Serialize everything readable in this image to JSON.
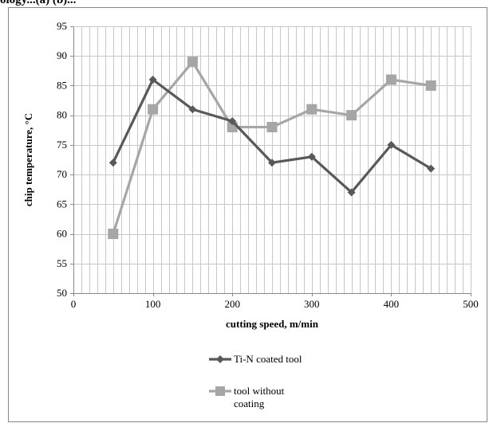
{
  "top_text": "ology...(a) (b)...",
  "chart_data": {
    "type": "line",
    "xlabel": "cutting speed, m/min",
    "ylabel": "chip temperature, °C",
    "xlim": [
      0,
      500
    ],
    "ylim": [
      50,
      95
    ],
    "x_ticks": [
      0,
      100,
      200,
      300,
      400,
      500
    ],
    "y_ticks": [
      50,
      55,
      60,
      65,
      70,
      75,
      80,
      85,
      90,
      95
    ],
    "x_minor_grid_step": 10,
    "grid": true,
    "legend_position": "bottom",
    "series": [
      {
        "name": "Ti-N coated tool",
        "marker": "diamond",
        "color": "#595959",
        "x": [
          50,
          100,
          150,
          200,
          250,
          300,
          350,
          400,
          450
        ],
        "y": [
          72,
          86,
          81,
          79,
          72,
          73,
          67,
          75,
          71
        ]
      },
      {
        "name": "tool without coating",
        "legend_lines": [
          "tool without",
          "coating"
        ],
        "marker": "square",
        "color": "#a6a6a6",
        "x": [
          50,
          100,
          150,
          200,
          250,
          300,
          350,
          400,
          450
        ],
        "y": [
          60,
          81,
          89,
          78,
          78,
          81,
          80,
          86,
          85
        ]
      }
    ]
  }
}
